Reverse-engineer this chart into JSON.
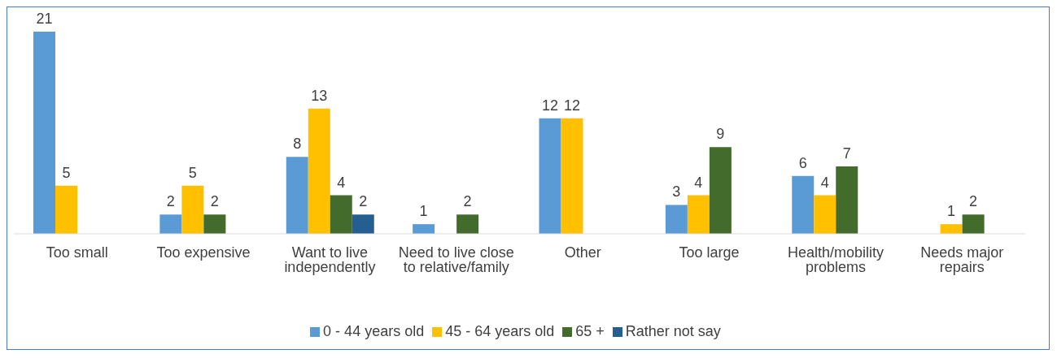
{
  "chart_data": {
    "type": "bar",
    "categories": [
      "Too small",
      "Too expensive",
      "Want to live independently",
      "Need to live close to relative/family",
      "Other",
      "Too large",
      "Health/mobility problems",
      "Needs major repairs"
    ],
    "series": [
      {
        "name": "0 - 44 years old",
        "color": "#5b9bd5",
        "values": [
          21,
          2,
          8,
          1,
          12,
          3,
          6,
          null
        ]
      },
      {
        "name": "45 - 64 years old",
        "color": "#ffc000",
        "values": [
          5,
          5,
          13,
          null,
          12,
          4,
          4,
          1
        ]
      },
      {
        "name": "65 +",
        "color": "#436b2c",
        "values": [
          null,
          2,
          4,
          2,
          null,
          9,
          7,
          2
        ]
      },
      {
        "name": "Rather not say",
        "color": "#255e91",
        "values": [
          null,
          null,
          2,
          null,
          null,
          null,
          null,
          null
        ]
      }
    ],
    "data_labels": true,
    "legend": "bottom"
  }
}
